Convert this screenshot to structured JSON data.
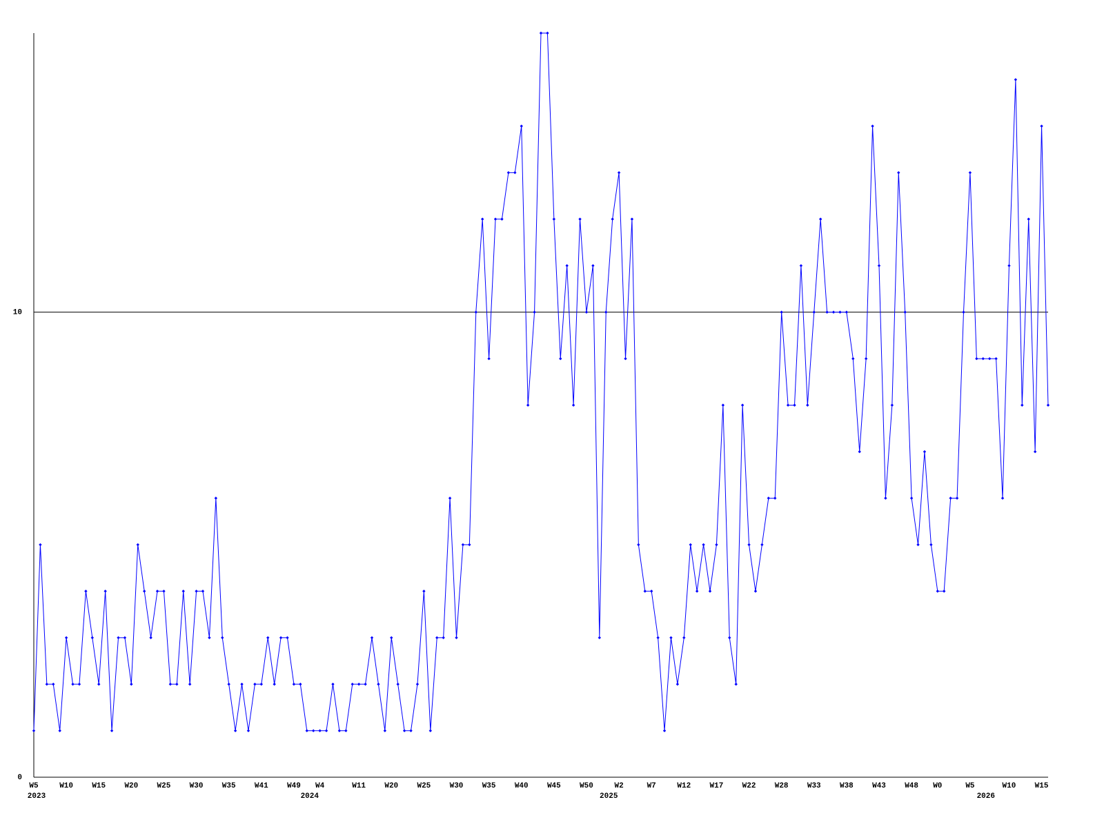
{
  "chart_data": {
    "type": "line",
    "categories": [
      "W5",
      null,
      null,
      null,
      null,
      "W10",
      null,
      null,
      null,
      null,
      "W15",
      null,
      null,
      null,
      null,
      "W20",
      null,
      null,
      null,
      null,
      "W25",
      null,
      null,
      null,
      null,
      "W30",
      null,
      null,
      null,
      null,
      "W35",
      null,
      null,
      null,
      null,
      "W41",
      null,
      null,
      null,
      null,
      "W49",
      null,
      null,
      null,
      "W4",
      null,
      null,
      null,
      null,
      null,
      "W11",
      null,
      null,
      null,
      null,
      "W20",
      null,
      null,
      null,
      null,
      "W25",
      null,
      null,
      null,
      null,
      "W30",
      null,
      null,
      null,
      null,
      "W35",
      null,
      null,
      null,
      null,
      "W40",
      null,
      null,
      null,
      null,
      "W45",
      null,
      null,
      null,
      null,
      "W50",
      null,
      null,
      null,
      null,
      "W2",
      null,
      null,
      null,
      null,
      "W7",
      null,
      null,
      null,
      null,
      "W12",
      null,
      null,
      null,
      null,
      "W17",
      null,
      null,
      null,
      null,
      "W22",
      null,
      null,
      null,
      null,
      "W28",
      null,
      null,
      null,
      null,
      "W33",
      null,
      null,
      null,
      null,
      "W38",
      null,
      null,
      null,
      null,
      "W43",
      null,
      null,
      null,
      null,
      "W48",
      null,
      null,
      null,
      "W0",
      null,
      null,
      null,
      null,
      "W5",
      null,
      null,
      null,
      null,
      null,
      "W10",
      null,
      null,
      null,
      null,
      "W15",
      null
    ],
    "year_labels": [
      "2023",
      null,
      null,
      null,
      null,
      null,
      null,
      null,
      null,
      null,
      null,
      null,
      null,
      null,
      null,
      null,
      null,
      null,
      null,
      null,
      null,
      null,
      null,
      null,
      null,
      null,
      null,
      null,
      null,
      null,
      null,
      null,
      null,
      null,
      null,
      null,
      null,
      null,
      null,
      null,
      null,
      null,
      "2024",
      null,
      null,
      null,
      null,
      null,
      null,
      null,
      null,
      null,
      null,
      null,
      null,
      null,
      null,
      null,
      null,
      null,
      null,
      null,
      null,
      null,
      null,
      null,
      null,
      null,
      null,
      null,
      null,
      null,
      null,
      null,
      null,
      null,
      null,
      null,
      null,
      null,
      null,
      null,
      null,
      null,
      null,
      null,
      null,
      null,
      "2025",
      null,
      null,
      null,
      null,
      null,
      null,
      null,
      null,
      null,
      null,
      null,
      null,
      null,
      null,
      null,
      null,
      null,
      null,
      null,
      null,
      null,
      null,
      null,
      null,
      null,
      null,
      null,
      null,
      null,
      null,
      null,
      null,
      null,
      null,
      null,
      null,
      null,
      null,
      null,
      null,
      null,
      null,
      null,
      null,
      null,
      null,
      null,
      null,
      null,
      null,
      null,
      null,
      null,
      null,
      null,
      null,
      null,
      "2026",
      null,
      null,
      null,
      null,
      null,
      null,
      null,
      null,
      null,
      null,
      null,
      null,
      null,
      null,
      null,
      null
    ],
    "series": [
      {
        "color": "#0000ff",
        "values": [
          1,
          5,
          2,
          2,
          1,
          3,
          2,
          2,
          4,
          3,
          2,
          4,
          1,
          3,
          3,
          2,
          5,
          4,
          3,
          4,
          4,
          2,
          2,
          4,
          2,
          4,
          4,
          3,
          6,
          3,
          2,
          1,
          2,
          1,
          2,
          2,
          3,
          2,
          3,
          3,
          2,
          2,
          1,
          1,
          1,
          1,
          2,
          1,
          1,
          2,
          2,
          2,
          3,
          2,
          1,
          3,
          2,
          1,
          1,
          2,
          4,
          1,
          3,
          3,
          6,
          3,
          5,
          5,
          10,
          12,
          9,
          12,
          12,
          13,
          13,
          14,
          8,
          10,
          16,
          16,
          12,
          9,
          11,
          8,
          12,
          10,
          11,
          3,
          10,
          12,
          13,
          9,
          12,
          5,
          4,
          4,
          3,
          1,
          3,
          2,
          3,
          5,
          4,
          5,
          4,
          5,
          8,
          3,
          2,
          8,
          5,
          4,
          5,
          6,
          6,
          10,
          8,
          8,
          11,
          8,
          10,
          12,
          10,
          10,
          10,
          10,
          9,
          7,
          9,
          14,
          11,
          6,
          8,
          13,
          10,
          6,
          5,
          7,
          5,
          4,
          4,
          6,
          6,
          10,
          13,
          9,
          9,
          9,
          9,
          6,
          11,
          15,
          8,
          12,
          7,
          14,
          8
        ]
      }
    ],
    "ylim": [
      0,
      16
    ],
    "yticks": [
      0,
      10
    ],
    "grid": true,
    "grid_color": "#000000"
  }
}
